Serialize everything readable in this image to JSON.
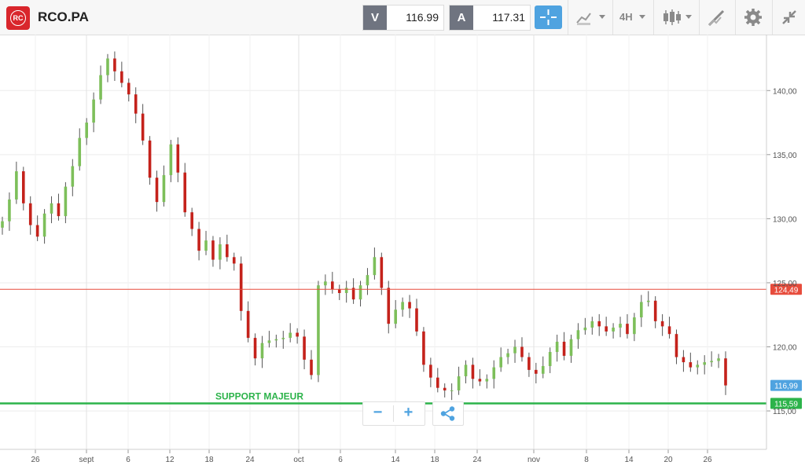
{
  "header": {
    "symbol": "RCO.PA",
    "logo_text": "RC",
    "sell": {
      "label": "V",
      "value": "116.99"
    },
    "buy": {
      "label": "A",
      "value": "117.31"
    },
    "timeframe": "4H"
  },
  "colors": {
    "up": "#7dbf5a",
    "down": "#c4221b",
    "resistance": "#e74c3c",
    "support": "#2cb34a",
    "current": "#4fa3e0",
    "accent": "#4fa3e0"
  },
  "icons": [
    "logo-icon",
    "crosshair-icon",
    "chart-type-icon",
    "timeframe-dropdown-icon",
    "candlestick-icon",
    "draw-icon",
    "settings-icon",
    "collapse-icon",
    "zoom-out-icon",
    "zoom-in-icon",
    "share-icon"
  ],
  "chart_data": {
    "type": "candlestick",
    "symbol": "RCO.PA",
    "ylim": [
      112,
      144
    ],
    "y_ticks": [
      "115,00",
      "120,00",
      "125,00",
      "130,00",
      "135,00",
      "140,00"
    ],
    "x_ticks": [
      "26",
      "sept",
      "6",
      "12",
      "18",
      "24",
      "oct",
      "6",
      "14",
      "18",
      "24",
      "nov",
      "8",
      "14",
      "20",
      "26"
    ],
    "grid": true,
    "horizontal_lines": [
      {
        "label": "124,49",
        "value": 124.49,
        "role": "resistance"
      },
      {
        "label": "115,59",
        "value": 115.59,
        "role": "support",
        "annotation": "SUPPORT MAJEUR"
      }
    ],
    "current_price": {
      "label": "116,99",
      "value": 116.99
    },
    "close_series": [
      129.8,
      131.5,
      133.7,
      131.2,
      129.5,
      128.6,
      130.4,
      131.2,
      130.2,
      132.5,
      134.1,
      136.3,
      137.5,
      139.3,
      141.2,
      142.5,
      141.5,
      140.6,
      139.7,
      138.2,
      136.1,
      133.2,
      131.3,
      133.4,
      135.8,
      133.6,
      130.5,
      129.2,
      127.5,
      128.3,
      126.8,
      128.0,
      127.0,
      126.5,
      122.8,
      120.7,
      119.1,
      120.3,
      120.5,
      120.6,
      120.7,
      121.1,
      120.8,
      119.0,
      117.8,
      124.8,
      125.1,
      124.5,
      124.2,
      124.6,
      123.7,
      124.8,
      125.6,
      127.0,
      124.6,
      121.8,
      122.9,
      123.5,
      123.0,
      121.2,
      118.6,
      117.6,
      116.8,
      116.6,
      116.6,
      117.7,
      118.6,
      117.5,
      117.3,
      117.5,
      118.4,
      119.2,
      119.5,
      120.0,
      119.2,
      118.2,
      117.9,
      118.5,
      119.6,
      120.4,
      119.3,
      120.6,
      121.3,
      121.5,
      122.0,
      121.6,
      121.2,
      121.5,
      121.8,
      121.0,
      122.3,
      123.5,
      123.6,
      122.0,
      121.6,
      121.0,
      119.2,
      118.8,
      118.4,
      118.6,
      118.8,
      118.9,
      119.1,
      116.99
    ],
    "annotations": [
      "SUPPORT MAJEUR"
    ]
  },
  "zoom": {
    "minus": "−",
    "plus": "+"
  }
}
